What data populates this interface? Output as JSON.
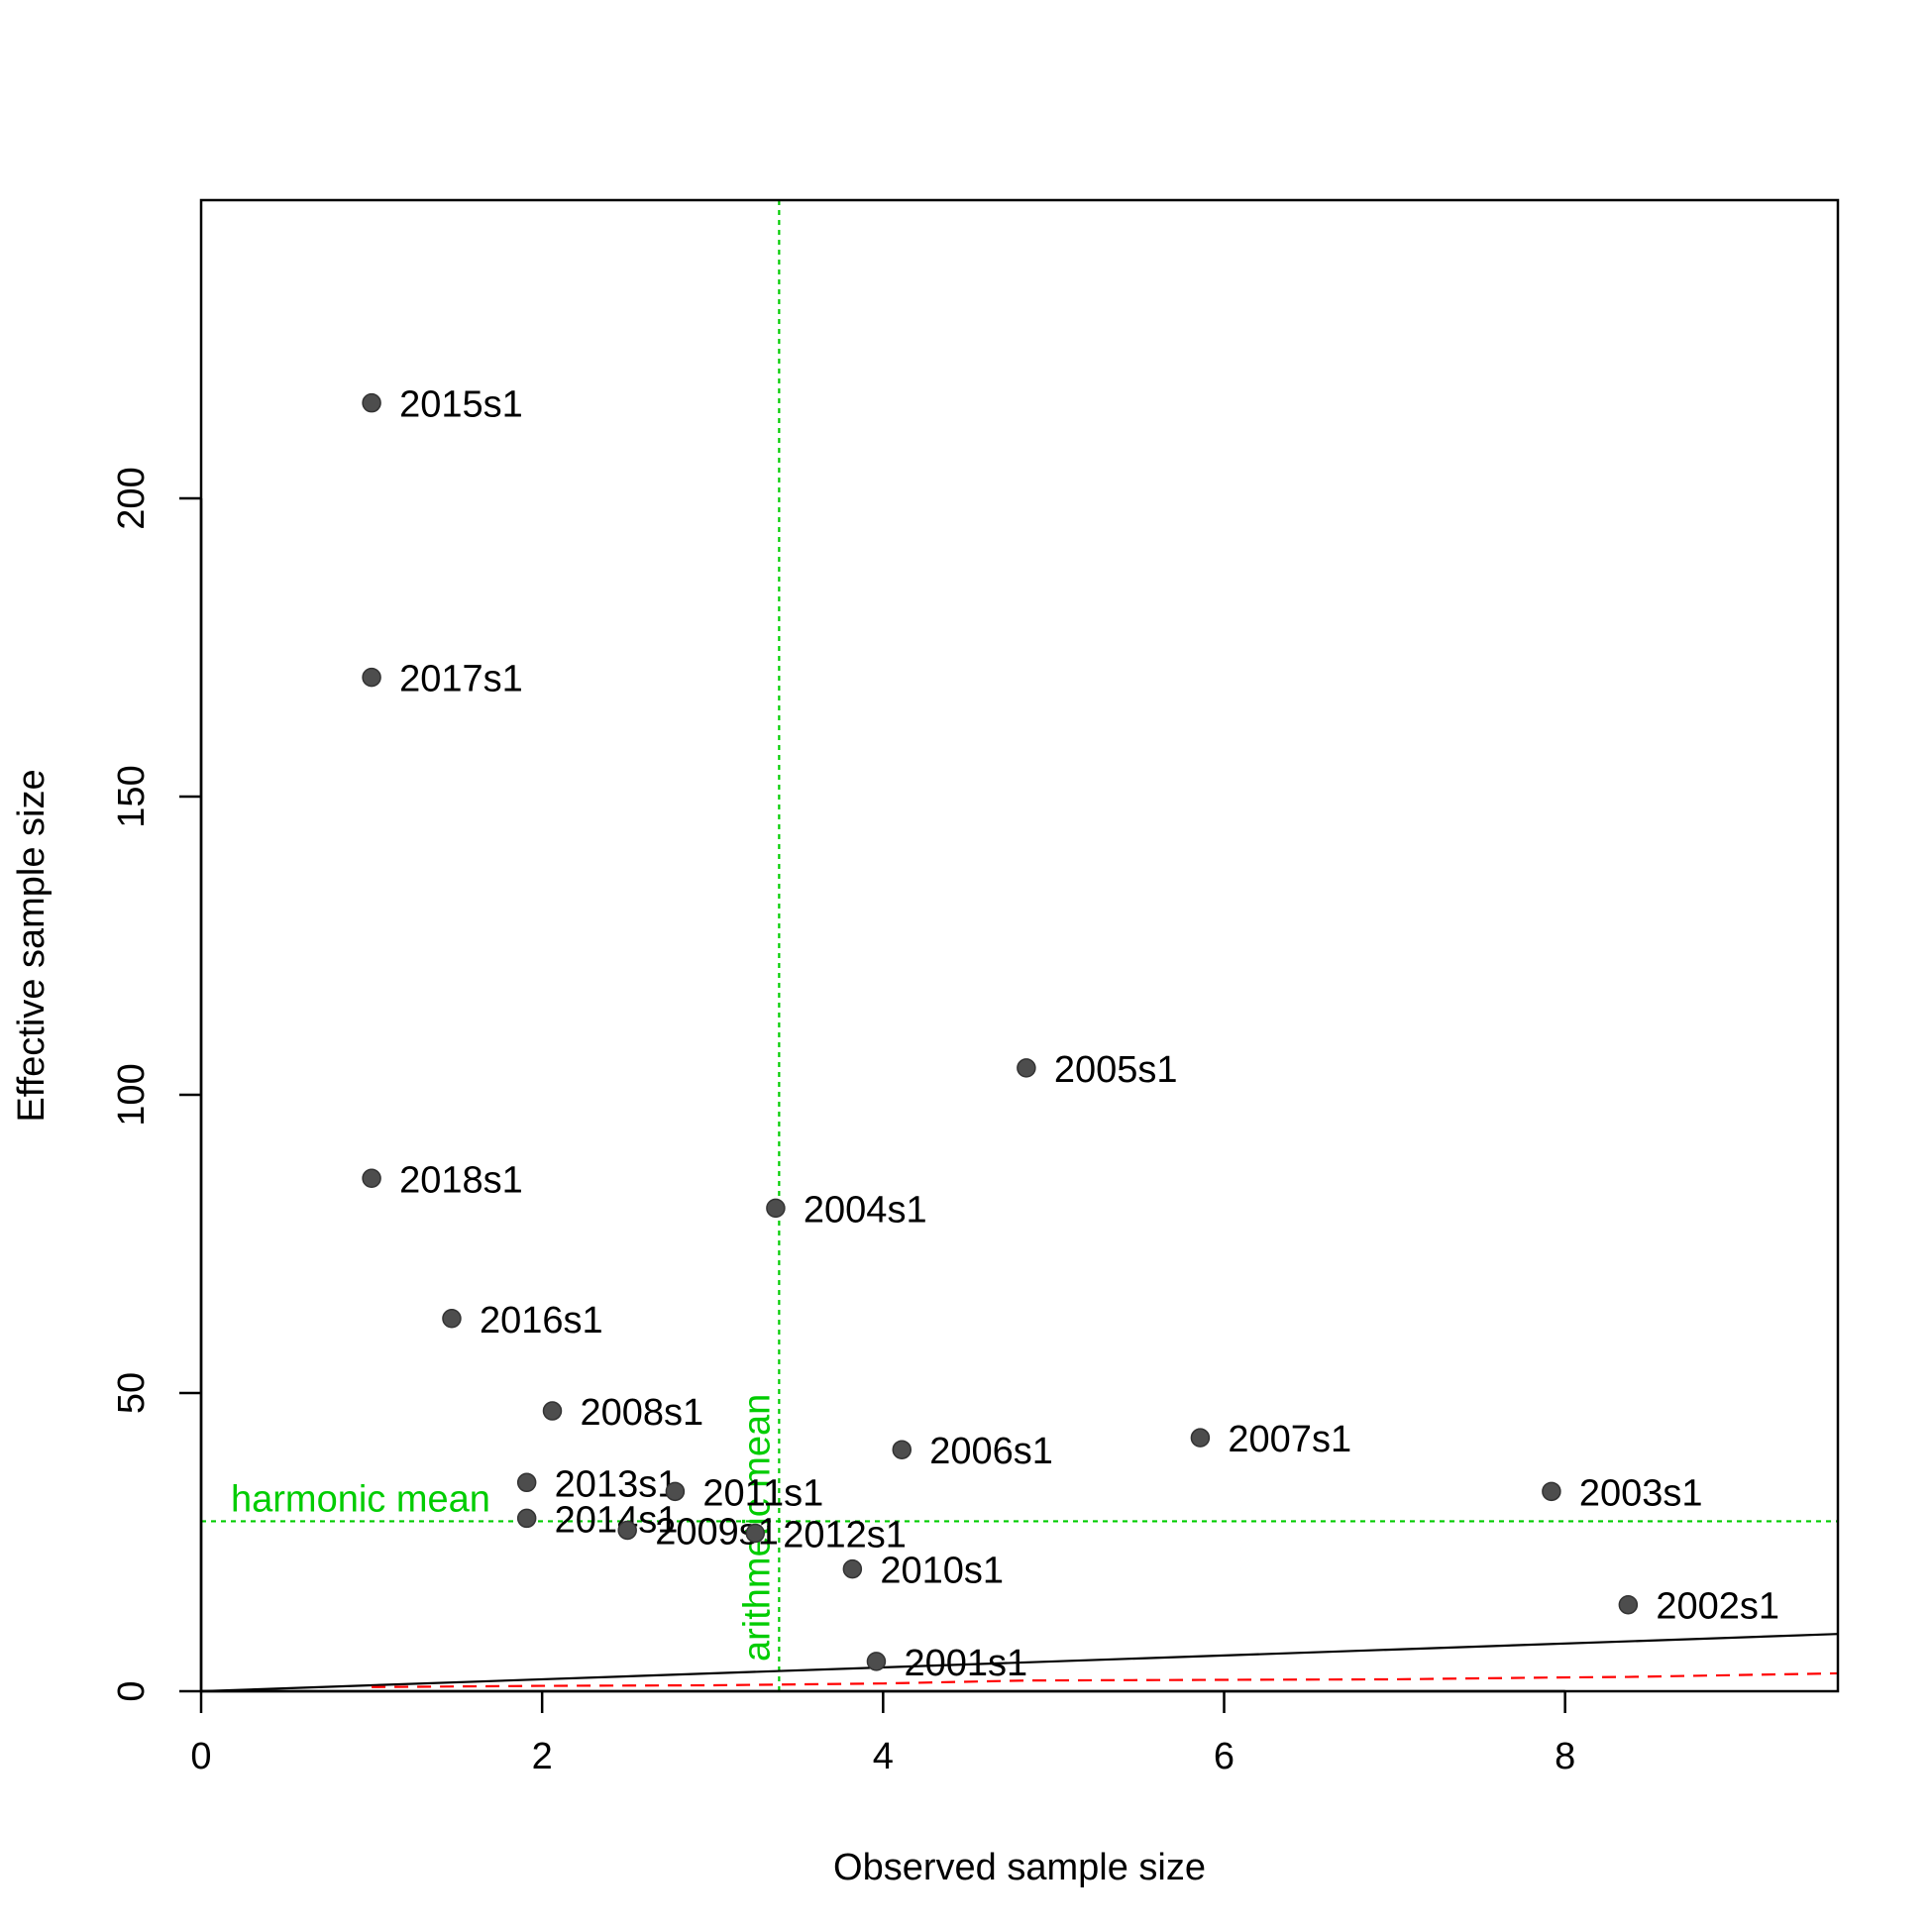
{
  "chart_data": {
    "type": "scatter",
    "xlabel": "Observed sample size",
    "ylabel": "Effective sample size",
    "xlim": [
      0,
      9.6
    ],
    "ylim": [
      0,
      250
    ],
    "x_ticks": [
      0,
      2,
      4,
      6,
      8
    ],
    "y_ticks": [
      0,
      50,
      100,
      150,
      200
    ],
    "grid": false,
    "point_color": "#4d4d4d",
    "reference_color": "#00cc00",
    "red_line_color": "#ff0000",
    "points": [
      {
        "label": "2015s1",
        "x": 1.0,
        "y": 216.0
      },
      {
        "label": "2017s1",
        "x": 1.0,
        "y": 170.0
      },
      {
        "label": "2005s1",
        "x": 4.84,
        "y": 104.5
      },
      {
        "label": "2018s1",
        "x": 1.0,
        "y": 86.0
      },
      {
        "label": "2004s1",
        "x": 3.37,
        "y": 81.0
      },
      {
        "label": "2016s1",
        "x": 1.47,
        "y": 62.5
      },
      {
        "label": "2008s1",
        "x": 2.06,
        "y": 47.0
      },
      {
        "label": "2006s1",
        "x": 4.11,
        "y": 40.5
      },
      {
        "label": "2007s1",
        "x": 5.86,
        "y": 42.5
      },
      {
        "label": "2013s1",
        "x": 1.91,
        "y": 35.0
      },
      {
        "label": "2011s1",
        "x": 2.78,
        "y": 33.5
      },
      {
        "label": "2003s1",
        "x": 7.92,
        "y": 33.5
      },
      {
        "label": "2014s1",
        "x": 1.91,
        "y": 29.0
      },
      {
        "label": "2009s1",
        "x": 2.5,
        "y": 27.0
      },
      {
        "label": "2012s1",
        "x": 3.25,
        "y": 26.5
      },
      {
        "label": "2010s1",
        "x": 3.82,
        "y": 20.5
      },
      {
        "label": "2002s1",
        "x": 8.37,
        "y": 14.5
      },
      {
        "label": "2001s1",
        "x": 3.96,
        "y": 5.0
      }
    ],
    "reference_lines": {
      "harmonic_mean": {
        "label": "harmonic mean",
        "y": 28.5
      },
      "arithmetic_mean": {
        "label": "arithmetic mean",
        "x": 3.39
      }
    },
    "identity_line": {
      "from": [
        0,
        0
      ],
      "to": [
        9.6,
        9.6
      ]
    },
    "red_dashed_line": [
      [
        1.0,
        0.7
      ],
      [
        2.0,
        0.9
      ],
      [
        3.0,
        1.0
      ],
      [
        4.0,
        1.3
      ],
      [
        4.84,
        1.8
      ],
      [
        5.86,
        1.9
      ],
      [
        7.0,
        2.0
      ],
      [
        7.92,
        2.3
      ],
      [
        8.37,
        2.4
      ],
      [
        9.6,
        3.0
      ]
    ]
  }
}
